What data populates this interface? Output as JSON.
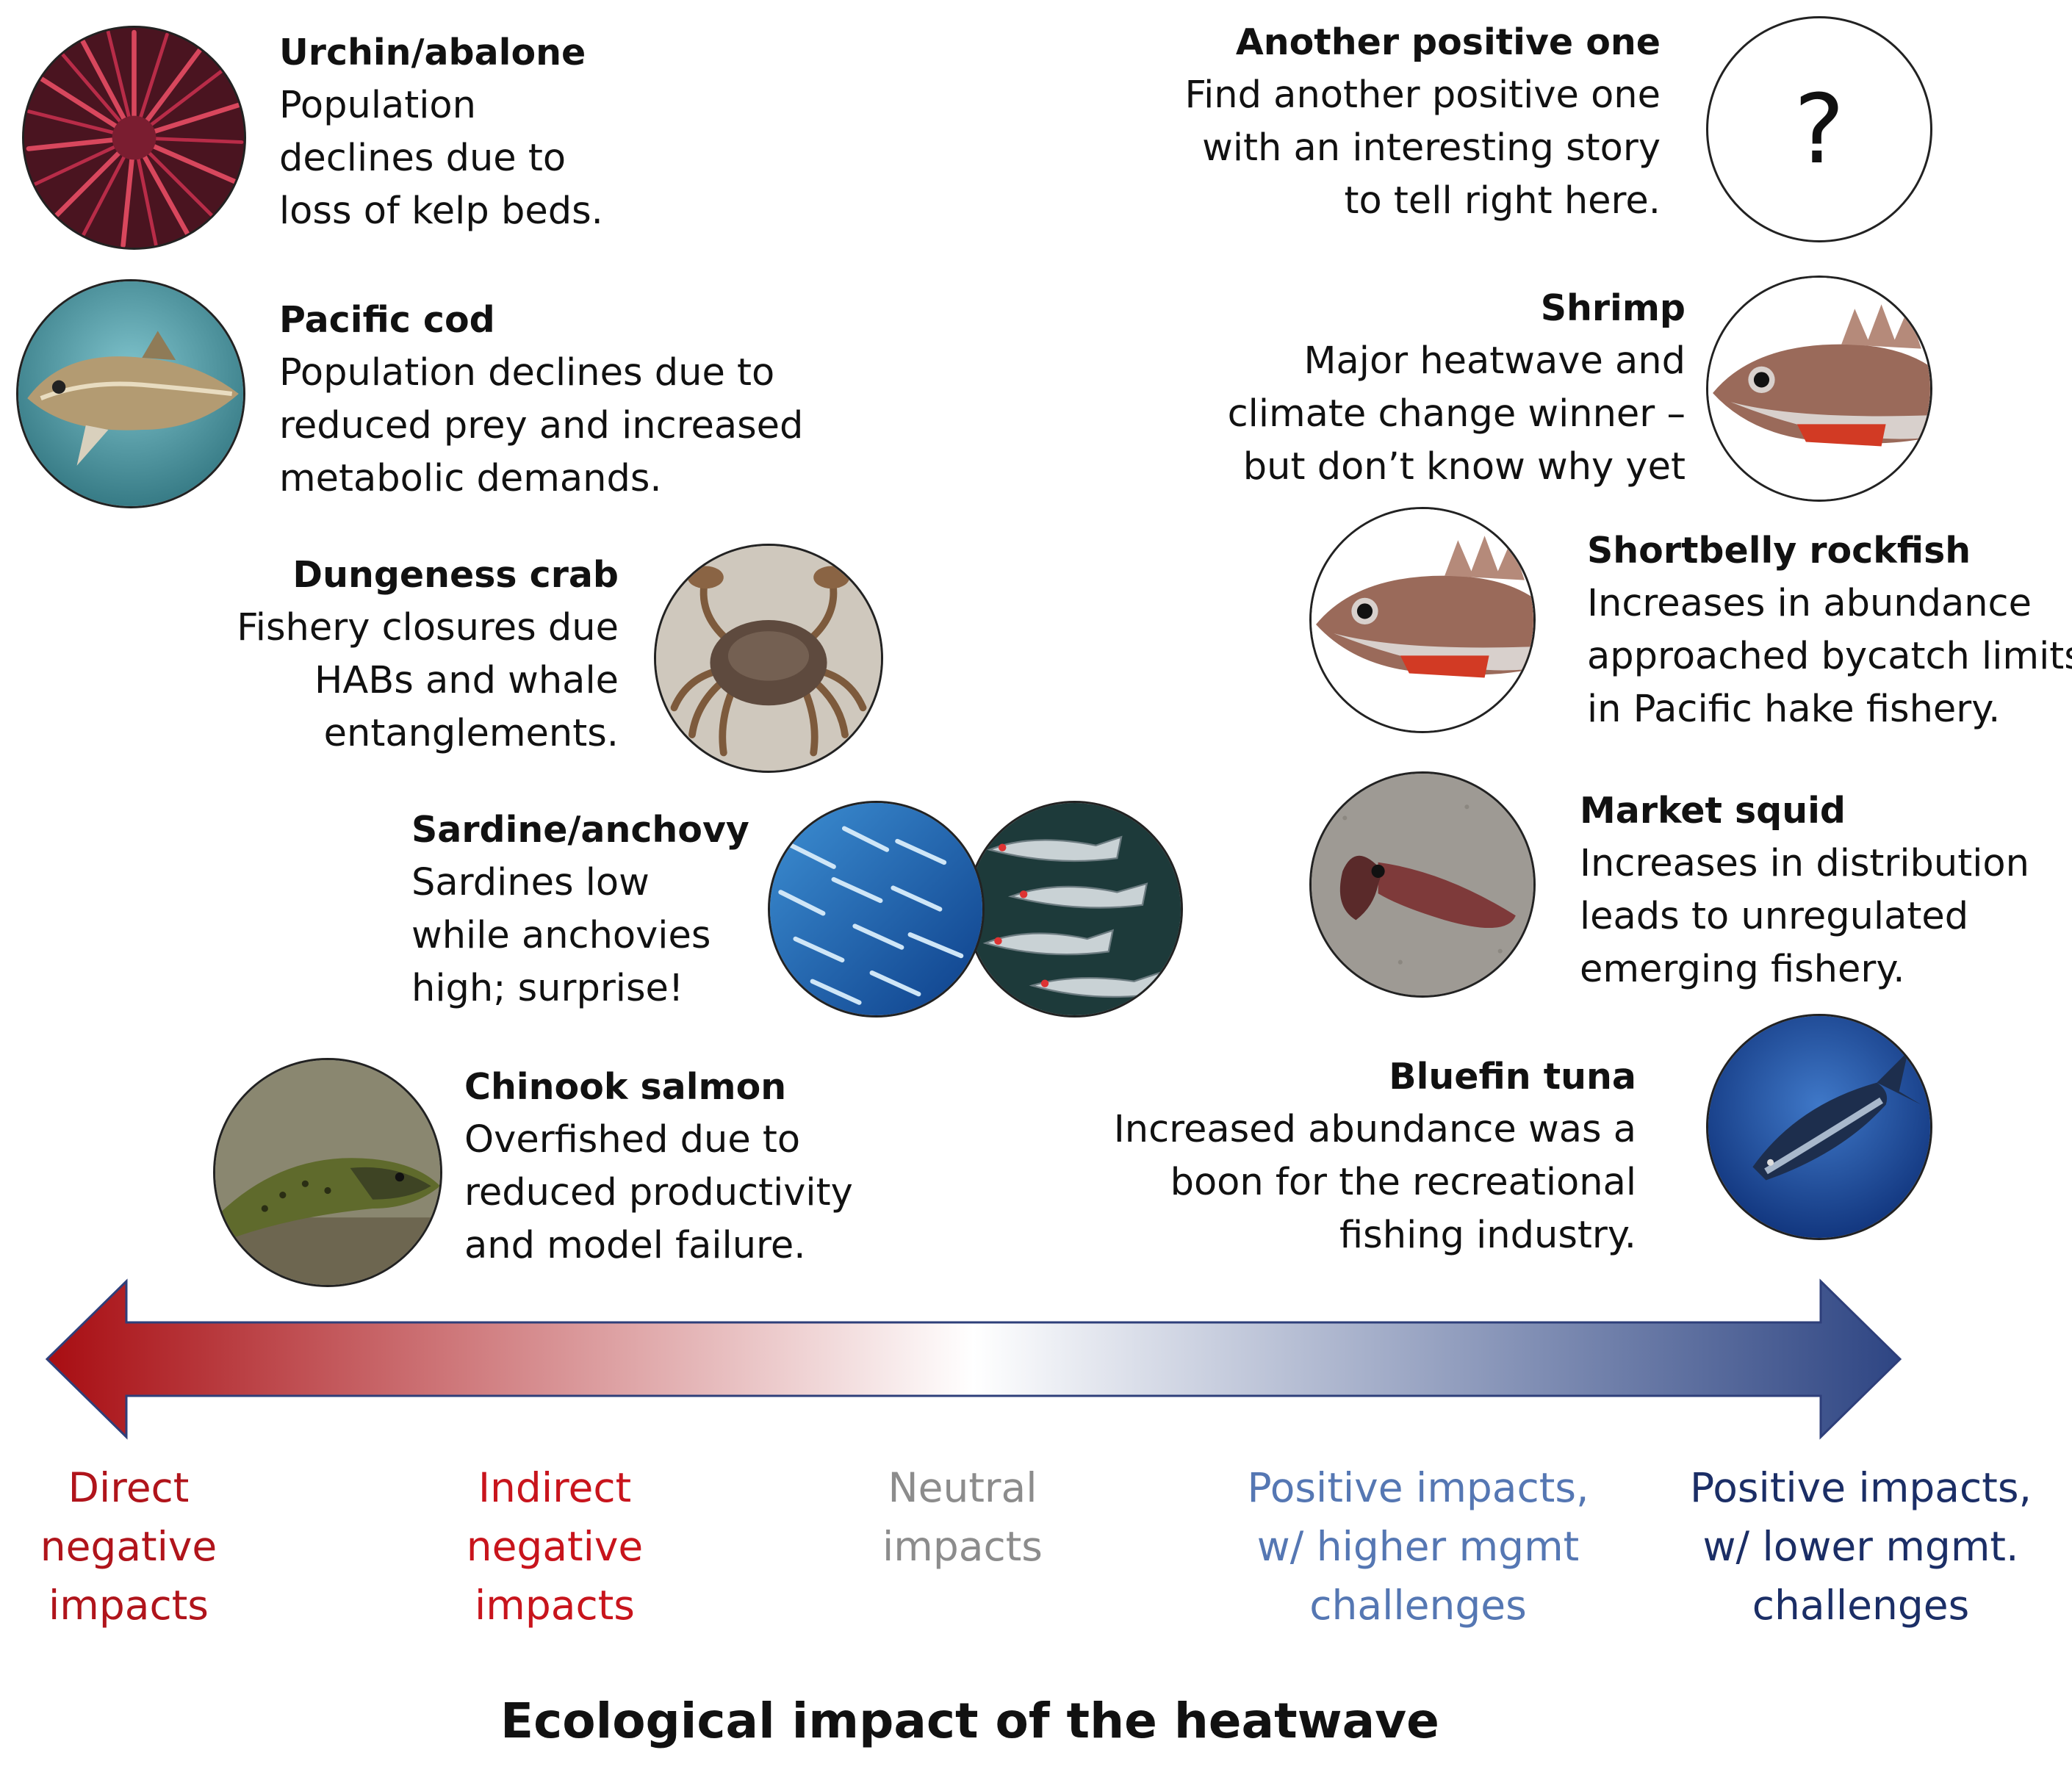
{
  "species": {
    "urchin": {
      "title": "Urchin/abalone",
      "lines": [
        "Population",
        "declines due to",
        "loss of kelp beds."
      ],
      "icon": "sea-urchin-photo"
    },
    "cod": {
      "title": "Pacific cod",
      "lines": [
        "Population declines due to",
        "reduced prey and increased",
        "metabolic demands."
      ],
      "icon": "pacific-cod-photo"
    },
    "crab": {
      "title": "Dungeness crab",
      "lines": [
        "Fishery closures due",
        "HABs and whale",
        "entanglements."
      ],
      "icon": "dungeness-crab-photo"
    },
    "sardine": {
      "title": "Sardine/anchovy",
      "lines": [
        "Sardines low",
        "while anchovies",
        "high; surprise!"
      ],
      "icon": "sardine-anchovy-photo"
    },
    "salmon": {
      "title": "Chinook salmon",
      "lines": [
        "Overfished due to",
        "reduced productivity",
        "and model failure."
      ],
      "icon": "chinook-salmon-photo"
    },
    "another": {
      "title": "Another positive one",
      "lines": [
        "Find another positive one",
        "with an interesting story",
        "to tell right here."
      ],
      "symbol": "?"
    },
    "shrimp": {
      "title": "Shrimp",
      "lines": [
        "Major heatwave and",
        "climate change winner –",
        "but don’t know why yet"
      ],
      "icon": "rockfish-photo"
    },
    "rockfish": {
      "title": "Shortbelly rockfish",
      "lines": [
        "Increases in abundance",
        "approached bycatch limits",
        "in Pacific hake fishery."
      ],
      "icon": "rockfish-photo"
    },
    "squid": {
      "title": "Market squid",
      "lines": [
        "Increases in distribution",
        "leads to unregulated",
        "emerging fishery."
      ],
      "icon": "market-squid-photo"
    },
    "tuna": {
      "title": "Bluefin tuna",
      "lines": [
        "Increased abundance was a",
        "boon for the recreational",
        "fishing industry."
      ],
      "icon": "bluefin-tuna-photo"
    }
  },
  "scale": {
    "gradient": [
      "#a80d12",
      "#ffffff",
      "#2e4583"
    ],
    "categories": [
      {
        "lines": [
          "Direct",
          "negative",
          "impacts"
        ],
        "color": "#b0141b"
      },
      {
        "lines": [
          "Indirect",
          "negative",
          "impacts"
        ],
        "color": "#c8141c"
      },
      {
        "lines": [
          "Neutral",
          "impacts"
        ],
        "color": "#8c8c8c"
      },
      {
        "lines": [
          "Positive impacts,",
          "w/ higher mgmt",
          "challenges"
        ],
        "color": "#5577b3"
      },
      {
        "lines": [
          "Positive impacts,",
          "w/ lower mgmt.",
          "challenges"
        ],
        "color": "#1b2e66"
      }
    ]
  },
  "axis_title": "Ecological impact of the heatwave"
}
